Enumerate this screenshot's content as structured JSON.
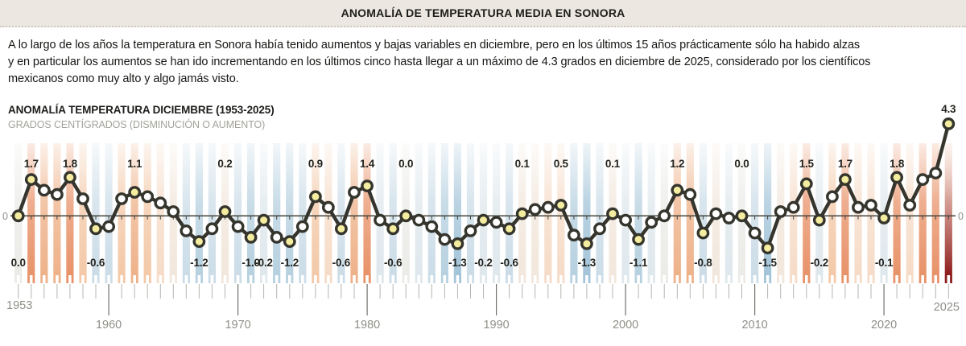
{
  "header": {
    "title": "ANOMALÍA DE TEMPERATURA MEDIA EN SONORA"
  },
  "intro": {
    "text": "A lo largo de los años la temperatura en Sonora había tenido aumentos y bajas variables en diciembre, pero en los últimos 15 años prácticamente sólo ha habido alzas\ny en particular los aumentos se han ido incrementando en los últimos cinco hasta llegar a un máximo de 4.3 grados en diciembre de 2025, considerado por los científicos\nmexicanos como muy alto y algo jamás visto."
  },
  "chart": {
    "title": "ANOMALÍA TEMPERATURA DICIEMBRE (1953-2025)",
    "subtitle": "GRADOS CENTÍGRADOS (DISMINUCIÓN O AUMENTO)"
  },
  "chart_data": {
    "type": "line",
    "title": "ANOMALÍA TEMPERATURA DICIEMBRE (1953-2025)",
    "ylabel": "GRADOS CENTÍGRADOS (DISMINUCIÓN O AUMENTO)",
    "x_range": [
      1953,
      2025
    ],
    "x_step": 1,
    "ylim": [
      -2.0,
      4.5
    ],
    "values": [
      0.0,
      1.7,
      1.2,
      1.0,
      1.8,
      0.8,
      -0.6,
      -0.5,
      0.8,
      1.1,
      0.9,
      0.6,
      0.2,
      -0.7,
      -1.2,
      -0.6,
      0.2,
      -0.5,
      -1.0,
      -0.2,
      -1.0,
      -1.2,
      -0.5,
      0.9,
      0.4,
      -0.6,
      1.1,
      1.4,
      -0.2,
      -0.6,
      0.0,
      -0.2,
      -0.5,
      -1.1,
      -1.3,
      -0.7,
      -0.2,
      -0.3,
      -0.6,
      0.1,
      0.3,
      0.4,
      0.5,
      -0.9,
      -1.3,
      -0.6,
      0.1,
      -0.2,
      -1.1,
      -0.3,
      0.0,
      1.2,
      1.0,
      -0.8,
      0.1,
      -0.1,
      0.0,
      -0.8,
      -1.5,
      0.2,
      0.4,
      1.5,
      -0.2,
      0.9,
      1.7,
      0.4,
      0.5,
      -0.1,
      1.8,
      0.5,
      1.7,
      2.0,
      4.3
    ],
    "top_labels": {
      "1954": "1.7",
      "1957": "1.8",
      "1962": "1.1",
      "1969": "0.2",
      "1976": "0.9",
      "1980": "1.4",
      "1983": "0.0",
      "1992": "0.1",
      "1995": "0.5",
      "1999": "0.1",
      "2004": "1.2",
      "2009": "0.0",
      "2014": "1.5",
      "2017": "1.7",
      "2021": "1.8",
      "2025": "4.3"
    },
    "bottom_labels": {
      "1953": "0.0",
      "1959": "-0.6",
      "1967": "-1.2",
      "1971": "-1.0",
      "1972": "-0.2",
      "1974": "-1.2",
      "1978": "-0.6",
      "1982": "-0.6",
      "1987": "-1.3",
      "1989": "-0.2",
      "1991": "-0.6",
      "1997": "-1.3",
      "2001": "-1.1",
      "2006": "-0.8",
      "2011": "-1.5",
      "2015": "-0.2",
      "2020": "-0.1"
    },
    "zero_axis_labels": [
      "0",
      "0"
    ],
    "x_axis": {
      "start_label": "1953",
      "end_label": "2025",
      "decade_ticks": [
        "1960",
        "1970",
        "1980",
        "1990",
        "2000",
        "2010",
        "2020"
      ]
    },
    "legend_position": "none",
    "grid": false
  },
  "colors": {
    "header_bg": "#ece8e1",
    "text": "#1d1d1b",
    "muted_text": "#8f8f89",
    "line": "#35352e",
    "marker_fill": "#ffffff",
    "marker_fill_labeled": "#f4eda0",
    "zero_line": "#45453e",
    "tick": "#b5b5b0",
    "decade_tick": "#72726c",
    "stripe_hot_top": "#efc3ab",
    "stripe_hot_bottom": "#8e1d1d",
    "stripe_palette": [
      [
        1.35,
        "#e8936a"
      ],
      [
        1.0,
        "#eeb28a"
      ],
      [
        0.7,
        "#f3c9a8"
      ],
      [
        0.35,
        "#f6dcc8"
      ],
      [
        0.05,
        "#f2e7dc"
      ],
      [
        -0.05,
        "#ebebe8"
      ],
      [
        -0.45,
        "#dfe8ed"
      ],
      [
        -0.85,
        "#ccdde8"
      ],
      [
        -1.25,
        "#b7d1e0"
      ],
      [
        -99,
        "#a4c5d9"
      ]
    ]
  }
}
